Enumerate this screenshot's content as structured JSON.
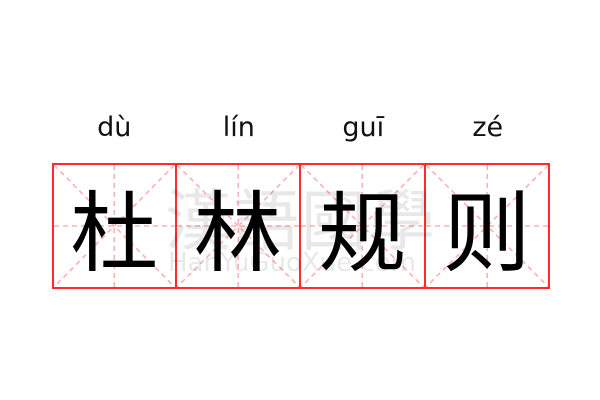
{
  "entries": [
    {
      "pinyin": "dù",
      "char": "杜"
    },
    {
      "pinyin": "lín",
      "char": "林"
    },
    {
      "pinyin": "guī",
      "char": "规"
    },
    {
      "pinyin": "zé",
      "char": "则"
    }
  ],
  "watermark": {
    "chinese": "漢語國學",
    "latin": "HanYuGuoXue.com"
  },
  "colors": {
    "grid_border": "#ff2a2a",
    "guide_lines": "#ffb0b0",
    "text": "#000000"
  }
}
